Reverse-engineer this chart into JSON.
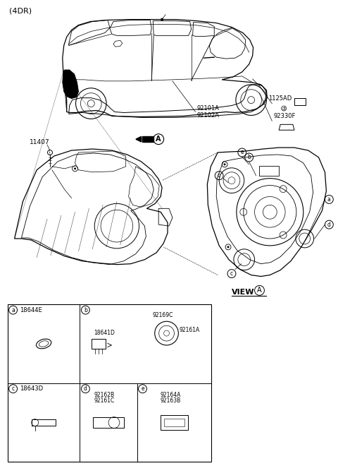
{
  "title": "(4DR)",
  "background_color": "#ffffff",
  "line_color": "#000000",
  "fig_width": 4.8,
  "fig_height": 6.7,
  "dpi": 100,
  "labels": {
    "title": "(4DR)",
    "p11407": "11407",
    "p92101A": "92101A",
    "p92102A": "92102A",
    "p1125AD": "1125AD",
    "p92330F": "92330F",
    "p18644E": "18644E",
    "p18641D": "18641D",
    "p92169C": "92169C",
    "p92161A": "92161A",
    "p18643D": "18643D",
    "p92162B": "92162B",
    "p92161C": "92161C",
    "p92164A": "92164A",
    "p92163B": "92163B",
    "view_a": "VIEW",
    "circle_a": "A"
  }
}
